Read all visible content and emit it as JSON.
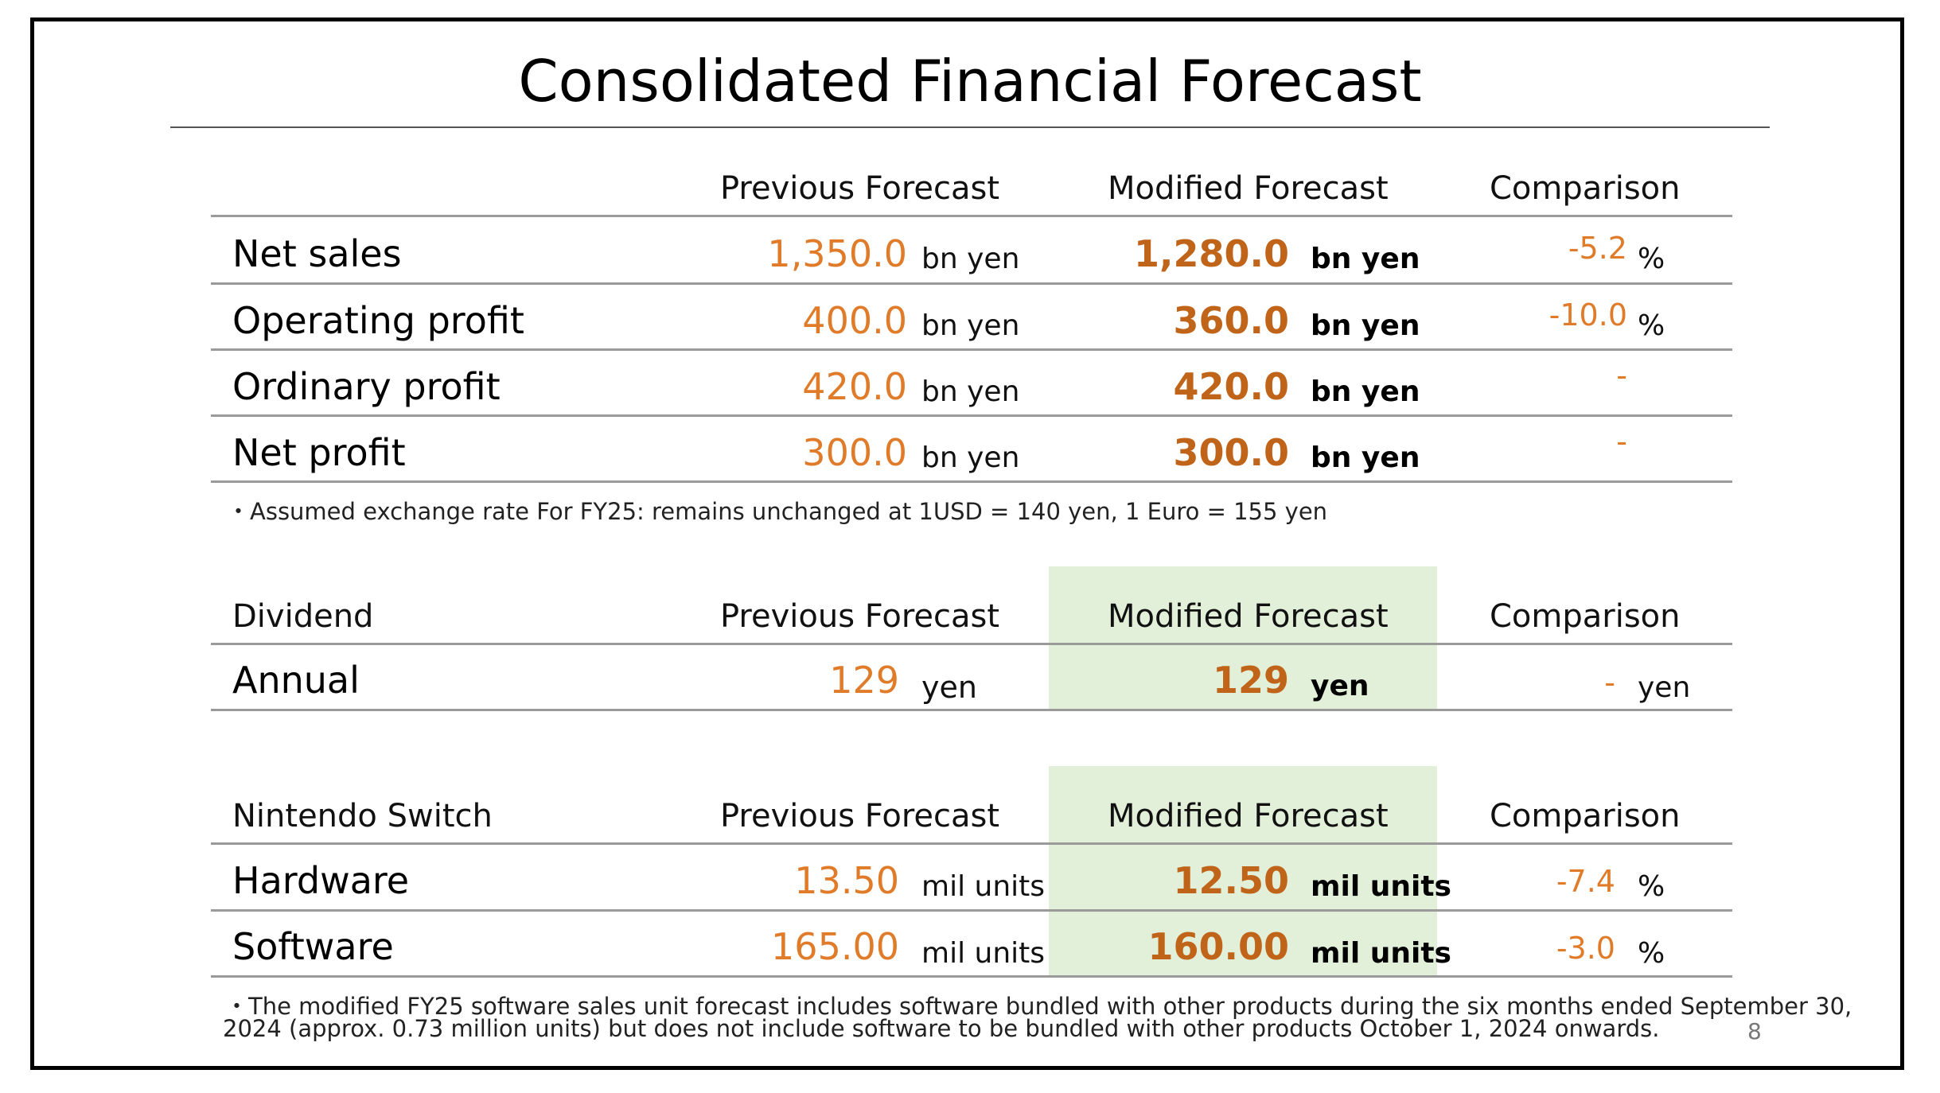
{
  "title": "Consolidated Financial Forecast",
  "page_number": "8",
  "colors": {
    "prev_value": "#e07b2a",
    "mod_value": "#c0641a",
    "highlight": "#e2f0d9"
  },
  "forecast": {
    "headers": {
      "previous": "Previous Forecast",
      "modified": "Modified Forecast",
      "comparison": "Comparison"
    },
    "rows": [
      {
        "label": "Net sales",
        "prev": "1,350.0",
        "prev_unit": "bn yen",
        "mod": "1,280.0",
        "mod_unit": "bn yen",
        "cmp": "-5.2",
        "cmp_unit": "%"
      },
      {
        "label": "Operating profit",
        "prev": "400.0",
        "prev_unit": "bn yen",
        "mod": "360.0",
        "mod_unit": "bn yen",
        "cmp": "-10.0",
        "cmp_unit": "%"
      },
      {
        "label": "Ordinary profit",
        "prev": "420.0",
        "prev_unit": "bn yen",
        "mod": "420.0",
        "mod_unit": "bn yen",
        "cmp": "-",
        "cmp_unit": ""
      },
      {
        "label": "Net profit",
        "prev": "300.0",
        "prev_unit": "bn yen",
        "mod": "300.0",
        "mod_unit": "bn yen",
        "cmp": "-",
        "cmp_unit": ""
      }
    ],
    "note": "・Assumed exchange rate For FY25: remains unchanged at 1USD = 140 yen, 1 Euro = 155 yen"
  },
  "dividend": {
    "headers": {
      "label": "Dividend",
      "previous": "Previous Forecast",
      "modified": "Modified Forecast",
      "comparison": "Comparison"
    },
    "rows": [
      {
        "label": "Annual",
        "prev": "129",
        "prev_unit": "yen",
        "mod": "129",
        "mod_unit": "yen",
        "cmp": "-",
        "cmp_unit": "yen"
      }
    ]
  },
  "switch": {
    "headers": {
      "label": "Nintendo Switch",
      "previous": "Previous Forecast",
      "modified": "Modified Forecast",
      "comparison": "Comparison"
    },
    "rows": [
      {
        "label": "Hardware",
        "prev": "13.50",
        "prev_unit": "mil units",
        "mod": "12.50",
        "mod_unit": "mil units",
        "cmp": "-7.4",
        "cmp_unit": "%"
      },
      {
        "label": "Software",
        "prev": "165.00",
        "prev_unit": "mil units",
        "mod": "160.00",
        "mod_unit": "mil units",
        "cmp": "-3.0",
        "cmp_unit": "%"
      }
    ],
    "note_line1": "・The modified FY25 software sales unit forecast includes software bundled with other products during the six months ended September 30,",
    "note_line2": "2024 (approx. 0.73 million units) but does not include software to be bundled with other products October 1, 2024 onwards."
  }
}
